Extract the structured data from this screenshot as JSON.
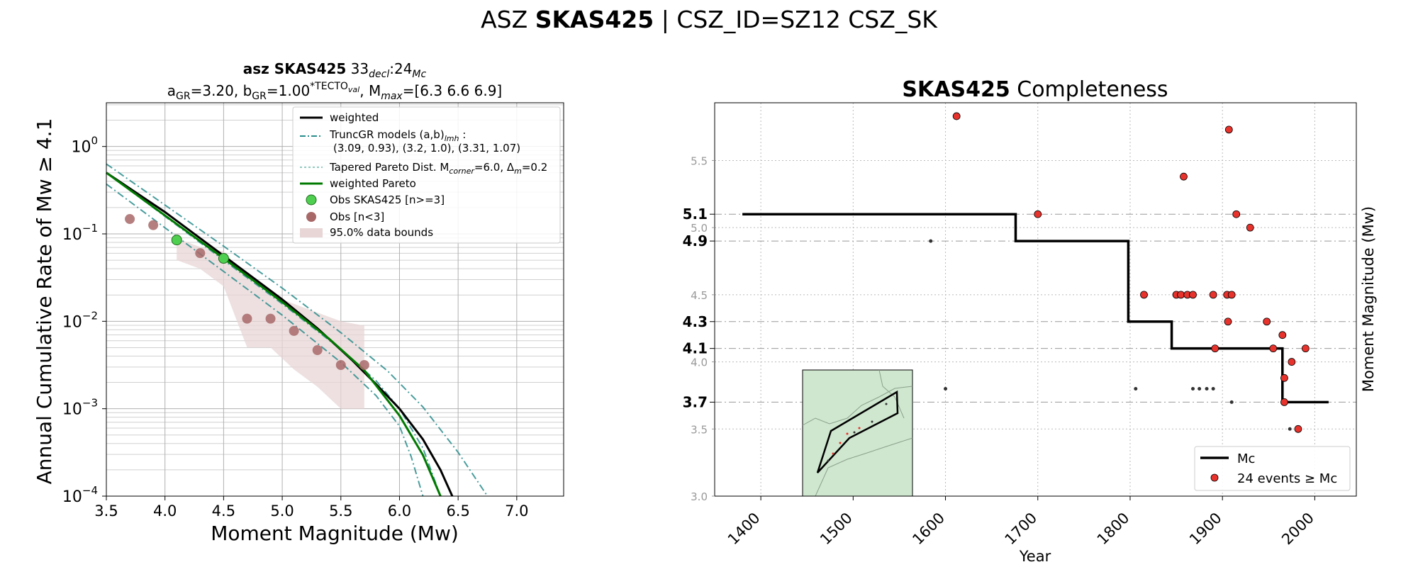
{
  "page_title": {
    "prefix": "ASZ ",
    "bold": "SKAS425",
    "suffix": " | CSZ_ID=SZ12 CSZ_SK"
  },
  "chart_data": [
    {
      "type": "line",
      "title_line1": {
        "bold": "asz SKAS425",
        "rest": "  33",
        "sub1": "decl",
        "mid": ":24",
        "sub2": "Mc"
      },
      "title_line2": {
        "a": "a",
        "a_sub": "GR",
        "a_val": "=3.20,  b",
        "b_sub": "GR",
        "b_val": "=1.00",
        "b_sup": "*TECTO",
        "b_sup_sub": "val",
        "m": ", M",
        "m_sub": "max",
        "m_val": "=[6.3 6.6 6.9]"
      },
      "xlabel": "Moment Magnitude (Mw)",
      "ylabel": "Annual Cumulative Rate of Mw  ≥  4.1",
      "xlim": [
        3.5,
        7.4
      ],
      "ylim_log10": [
        -4,
        0.5
      ],
      "yscale": "log",
      "grid": true,
      "legend_position": "top-right",
      "xticks": [
        "3.5",
        "4.0",
        "4.5",
        "5.0",
        "5.5",
        "6.0",
        "6.5",
        "7.0"
      ],
      "yticks": [
        {
          "base": "10",
          "exp": "0",
          "v": 0
        },
        {
          "base": "10",
          "exp": "−1",
          "v": -1
        },
        {
          "base": "10",
          "exp": "−2",
          "v": -2
        },
        {
          "base": "10",
          "exp": "−3",
          "v": -3
        },
        {
          "base": "10",
          "exp": "−4",
          "v": -4
        }
      ],
      "legend": {
        "weighted": "weighted",
        "truncgr": "TruncGR models (a,b)",
        "truncgr_sub": "lmh",
        "truncgr_colon": " :",
        "truncgr_values": "(3.09, 0.93), (3.2, 1.0), (3.31, 1.07)",
        "tapered": "Tapered Pareto Dist. M",
        "tapered_sub": "corner",
        "tapered_rest": "=6.0, Δ",
        "tapered_sub2": "m",
        "tapered_rest2": "=0.2",
        "weighted_pareto": "weighted Pareto",
        "obs_main": "Obs SKAS425 [n>=3]",
        "obs_small": "Obs [n<3]",
        "bounds": "95.0% data bounds"
      },
      "colors": {
        "weighted": "#000000",
        "truncgr": "#2a8c8c",
        "pareto": "#007a00",
        "obs_main": "#4fcf4f",
        "obs_small": "#a86868",
        "bounds": "#e8d6d6"
      },
      "series": {
        "weighted": [
          [
            3.5,
            -0.3
          ],
          [
            4.0,
            -0.75
          ],
          [
            4.5,
            -1.25
          ],
          [
            5.0,
            -1.75
          ],
          [
            5.3,
            -2.08
          ],
          [
            5.6,
            -2.45
          ],
          [
            5.8,
            -2.72
          ],
          [
            6.0,
            -3.0
          ],
          [
            6.2,
            -3.35
          ],
          [
            6.35,
            -3.7
          ],
          [
            6.45,
            -4.0
          ]
        ],
        "truncgr_mid": [
          [
            3.5,
            -0.3
          ],
          [
            4.0,
            -0.8
          ],
          [
            4.5,
            -1.3
          ],
          [
            5.0,
            -1.8
          ],
          [
            5.5,
            -2.32
          ],
          [
            5.8,
            -2.68
          ],
          [
            6.0,
            -3.0
          ],
          [
            6.2,
            -3.45
          ],
          [
            6.35,
            -4.0
          ]
        ],
        "truncgr_high": [
          [
            3.5,
            -0.2
          ],
          [
            4.0,
            -0.67
          ],
          [
            4.5,
            -1.14
          ],
          [
            5.0,
            -1.62
          ],
          [
            5.5,
            -2.13
          ],
          [
            5.9,
            -2.57
          ],
          [
            6.2,
            -2.98
          ],
          [
            6.5,
            -3.5
          ],
          [
            6.75,
            -4.0
          ]
        ],
        "truncgr_low": [
          [
            3.5,
            -0.43
          ],
          [
            4.0,
            -0.93
          ],
          [
            4.5,
            -1.43
          ],
          [
            5.0,
            -1.93
          ],
          [
            5.5,
            -2.47
          ],
          [
            5.8,
            -2.85
          ],
          [
            6.0,
            -3.2
          ],
          [
            6.1,
            -3.55
          ],
          [
            6.2,
            -4.0
          ]
        ],
        "pareto": [
          [
            3.5,
            -0.3
          ],
          [
            4.0,
            -0.79
          ],
          [
            4.5,
            -1.28
          ],
          [
            5.0,
            -1.78
          ],
          [
            5.4,
            -2.2
          ],
          [
            5.7,
            -2.56
          ],
          [
            6.0,
            -3.08
          ],
          [
            6.2,
            -3.53
          ],
          [
            6.35,
            -4.0
          ]
        ],
        "obs_main": [
          [
            4.1,
            -1.07
          ],
          [
            4.5,
            -1.28
          ]
        ],
        "obs_small": [
          [
            3.7,
            -0.83
          ],
          [
            3.9,
            -0.9
          ],
          [
            4.3,
            -1.22
          ],
          [
            4.7,
            -1.97
          ],
          [
            4.9,
            -1.97
          ],
          [
            5.1,
            -2.11
          ],
          [
            5.3,
            -2.33
          ],
          [
            5.5,
            -2.5
          ],
          [
            5.7,
            -2.5
          ]
        ],
        "bounds_upper": [
          [
            4.1,
            -1.05
          ],
          [
            4.3,
            -1.15
          ],
          [
            4.5,
            -1.2
          ],
          [
            4.7,
            -1.5
          ],
          [
            4.9,
            -1.7
          ],
          [
            5.1,
            -1.8
          ],
          [
            5.3,
            -1.9
          ],
          [
            5.5,
            -2.0
          ],
          [
            5.7,
            -2.05
          ]
        ],
        "bounds_lower": [
          [
            5.7,
            -3.0
          ],
          [
            5.5,
            -3.0
          ],
          [
            5.3,
            -2.75
          ],
          [
            5.1,
            -2.55
          ],
          [
            4.9,
            -2.3
          ],
          [
            4.7,
            -2.3
          ],
          [
            4.5,
            -1.6
          ],
          [
            4.3,
            -1.4
          ],
          [
            4.1,
            -1.3
          ]
        ]
      }
    },
    {
      "type": "scatter",
      "title_bold": "SKAS425",
      "title_rest": " Completeness",
      "xlabel": "Year",
      "ylabel": "Moment Magnitude (Mw)",
      "xlim": [
        1350,
        2045
      ],
      "ylim": [
        3.0,
        5.93
      ],
      "grid": true,
      "legend_position": "bottom-right",
      "xticks": [
        "1400",
        "1500",
        "1600",
        "1700",
        "1800",
        "1900",
        "2000"
      ],
      "yticks_minor": [
        "3.0",
        "3.5",
        "4.0",
        "4.5",
        "5.0",
        "5.5"
      ],
      "yticks_major": [
        "3.7",
        "4.1",
        "4.3",
        "4.9",
        "5.1"
      ],
      "legend": {
        "mc": "Mc",
        "events": "24 events  ≥  Mc"
      },
      "colors": {
        "mc": "#000000",
        "events": "#e8322c",
        "small": "#333333",
        "inset_bg": "#cfe6cf"
      },
      "mc_step": [
        [
          1380,
          5.1
        ],
        [
          1676,
          5.1
        ],
        [
          1676,
          4.9
        ],
        [
          1798,
          4.9
        ],
        [
          1798,
          4.3
        ],
        [
          1845,
          4.3
        ],
        [
          1845,
          4.1
        ],
        [
          1965,
          4.1
        ],
        [
          1965,
          3.7
        ],
        [
          2015,
          3.7
        ]
      ],
      "events": [
        [
          1612,
          5.83
        ],
        [
          1700,
          5.1
        ],
        [
          1815,
          4.5
        ],
        [
          1850,
          4.5
        ],
        [
          1855,
          4.5
        ],
        [
          1858,
          5.38
        ],
        [
          1862,
          4.5
        ],
        [
          1868,
          4.5
        ],
        [
          1890,
          4.5
        ],
        [
          1892,
          4.1
        ],
        [
          1905,
          4.5
        ],
        [
          1906,
          4.3
        ],
        [
          1907,
          5.73
        ],
        [
          1910,
          4.5
        ],
        [
          1915,
          5.1
        ],
        [
          1930,
          5.0
        ],
        [
          1948,
          4.3
        ],
        [
          1955,
          4.1
        ],
        [
          1965,
          4.2
        ],
        [
          1967,
          3.88
        ],
        [
          1967,
          3.7
        ],
        [
          1975,
          4.0
        ],
        [
          1982,
          3.5
        ],
        [
          1990,
          4.1
        ]
      ],
      "small_events": [
        [
          1584,
          4.9
        ],
        [
          1600,
          3.8
        ],
        [
          1806,
          3.8
        ],
        [
          1868,
          3.8
        ],
        [
          1875,
          3.8
        ],
        [
          1883,
          3.8
        ],
        [
          1890,
          3.8
        ],
        [
          1910,
          3.7
        ],
        [
          1973,
          3.5
        ]
      ]
    }
  ]
}
